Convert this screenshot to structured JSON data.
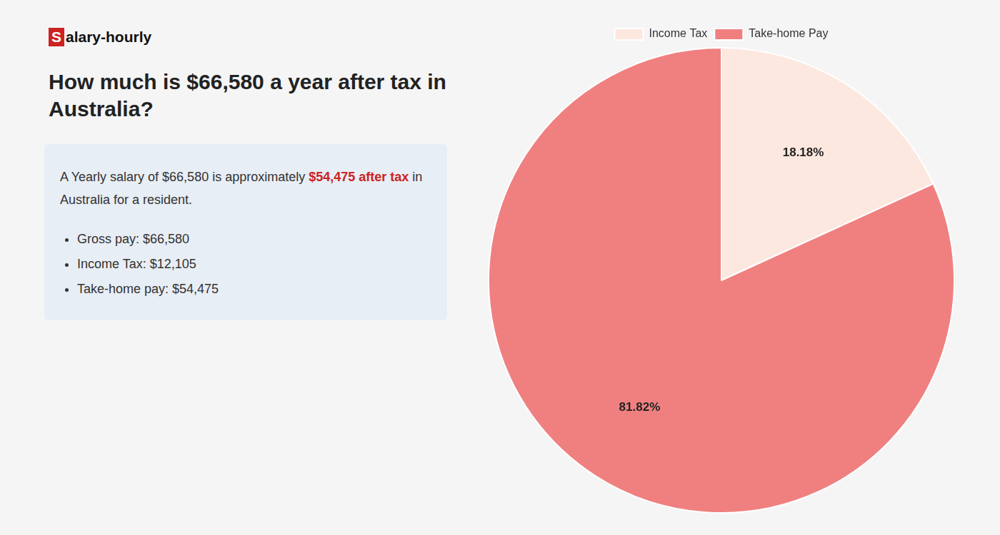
{
  "chart_data": {
    "type": "pie",
    "title": [
      "How much is $66,580 a year after tax in",
      "Australia?"
    ],
    "categories": [
      "Income Tax",
      "Take-home Pay"
    ],
    "values": [
      18.18,
      81.82
    ],
    "value_labels": [
      "18.18%",
      "81.82%"
    ],
    "colors": [
      "#fde8e0",
      "#f08080"
    ],
    "data_labels": true,
    "legend": "top",
    "annotations": [
      [
        "S",
        "alary-hourly"
      ],
      [
        "A Yearly salary of $66,580 is approximately ",
        "$54,475 after tax",
        " in"
      ],
      [
        "Australia for a resident."
      ],
      [
        "Gross pay: $66,580"
      ],
      [
        "Income Tax: $12,105"
      ],
      [
        "Take-home pay: $54,475"
      ]
    ]
  }
}
